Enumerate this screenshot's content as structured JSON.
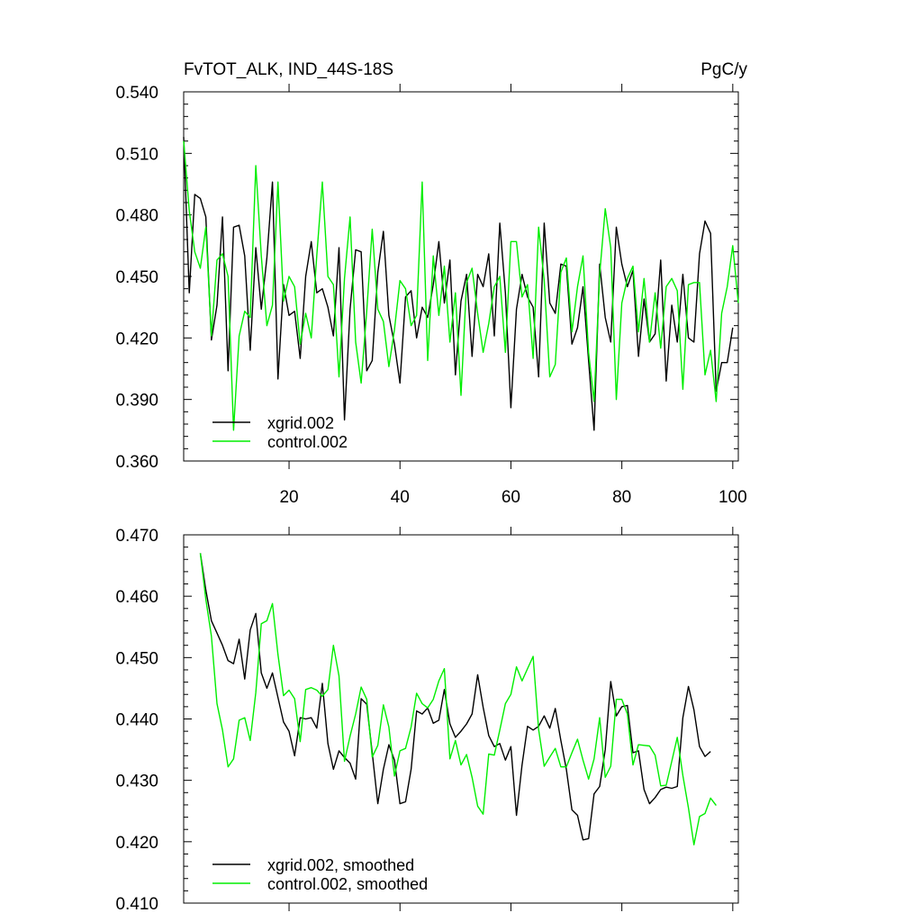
{
  "chart_data": [
    {
      "type": "line",
      "title_left": "FvTOT_ALK, IND_44S-18S",
      "title_right": "PgC/y",
      "xlim": [
        1,
        101
      ],
      "ylim": [
        0.36,
        0.54
      ],
      "yticks": [
        0.36,
        0.39,
        0.42,
        0.45,
        0.48,
        0.51,
        0.54
      ],
      "ytick_labels": [
        "0.360",
        "0.390",
        "0.420",
        "0.450",
        "0.480",
        "0.510",
        "0.540"
      ],
      "xticks": [
        20,
        40,
        60,
        80,
        100
      ],
      "xtick_labels": [
        "20",
        "40",
        "60",
        "80",
        "100"
      ],
      "legend_position": "bottom-left",
      "series": [
        {
          "name": "xgrid.002",
          "color": "#000000",
          "x_start": 1,
          "values": [
            0.518,
            0.442,
            0.49,
            0.488,
            0.479,
            0.419,
            0.436,
            0.479,
            0.404,
            0.474,
            0.475,
            0.46,
            0.414,
            0.464,
            0.434,
            0.459,
            0.496,
            0.4,
            0.446,
            0.431,
            0.433,
            0.41,
            0.45,
            0.467,
            0.442,
            0.444,
            0.435,
            0.421,
            0.464,
            0.38,
            0.434,
            0.463,
            0.462,
            0.404,
            0.409,
            0.452,
            0.472,
            0.431,
            0.417,
            0.398,
            0.44,
            0.443,
            0.42,
            0.435,
            0.43,
            0.446,
            0.467,
            0.437,
            0.458,
            0.402,
            0.438,
            0.451,
            0.411,
            0.451,
            0.445,
            0.461,
            0.421,
            0.476,
            0.442,
            0.386,
            0.434,
            0.451,
            0.44,
            0.435,
            0.401,
            0.476,
            0.437,
            0.432,
            0.456,
            0.455,
            0.417,
            0.425,
            0.445,
            0.409,
            0.375,
            0.456,
            0.43,
            0.418,
            0.474,
            0.456,
            0.445,
            0.453,
            0.411,
            0.439,
            0.418,
            0.422,
            0.458,
            0.399,
            0.436,
            0.418,
            0.451,
            0.42,
            0.418,
            0.461,
            0.477,
            0.471,
            0.394,
            0.408,
            0.408,
            0.425
          ]
        },
        {
          "name": "control.002",
          "color": "#00ee00",
          "x_start": 1,
          "values": [
            0.516,
            0.482,
            0.462,
            0.454,
            0.474,
            0.421,
            0.458,
            0.461,
            0.45,
            0.375,
            0.421,
            0.433,
            0.43,
            0.504,
            0.46,
            0.426,
            0.436,
            0.496,
            0.438,
            0.45,
            0.445,
            0.417,
            0.432,
            0.42,
            0.46,
            0.496,
            0.45,
            0.446,
            0.401,
            0.449,
            0.479,
            0.418,
            0.398,
            0.433,
            0.473,
            0.434,
            0.428,
            0.406,
            0.424,
            0.448,
            0.444,
            0.426,
            0.431,
            0.496,
            0.409,
            0.46,
            0.431,
            0.455,
            0.418,
            0.442,
            0.392,
            0.447,
            0.454,
            0.432,
            0.413,
            0.427,
            0.445,
            0.45,
            0.413,
            0.467,
            0.467,
            0.44,
            0.446,
            0.41,
            0.474,
            0.448,
            0.401,
            0.407,
            0.452,
            0.459,
            0.423,
            0.445,
            0.46,
            0.413,
            0.389,
            0.451,
            0.483,
            0.464,
            0.39,
            0.437,
            0.449,
            0.455,
            0.423,
            0.449,
            0.418,
            0.442,
            0.415,
            0.445,
            0.449,
            0.443,
            0.395,
            0.446,
            0.447,
            0.447,
            0.402,
            0.414,
            0.389,
            0.432,
            0.445,
            0.465,
            0.437
          ]
        }
      ]
    },
    {
      "type": "line",
      "xlim": [
        1,
        101
      ],
      "ylim": [
        0.41,
        0.47
      ],
      "yticks": [
        0.41,
        0.42,
        0.43,
        0.44,
        0.45,
        0.46,
        0.47
      ],
      "ytick_labels": [
        "0.410",
        "0.420",
        "0.430",
        "0.440",
        "0.450",
        "0.460",
        "0.470"
      ],
      "xticks": [
        20,
        40,
        60,
        80,
        100
      ],
      "legend_position": "bottom-left",
      "series": [
        {
          "name": "xgrid.002, smoothed",
          "color": "#000000",
          "x_start": 4,
          "values": [
            0.467,
            0.461,
            0.456,
            0.454,
            0.452,
            0.4495,
            0.449,
            0.453,
            0.4465,
            0.4545,
            0.4572,
            0.4475,
            0.445,
            0.4475,
            0.4435,
            0.4395,
            0.438,
            0.434,
            0.4402,
            0.44,
            0.4402,
            0.4385,
            0.4458,
            0.436,
            0.4318,
            0.4348,
            0.4337,
            0.4328,
            0.4302,
            0.4433,
            0.4424,
            0.4345,
            0.4262,
            0.4318,
            0.4358,
            0.4333,
            0.4262,
            0.4265,
            0.4318,
            0.4413,
            0.4408,
            0.4418,
            0.4393,
            0.4398,
            0.4448,
            0.4392,
            0.437,
            0.438,
            0.4392,
            0.4408,
            0.4472,
            0.4419,
            0.4373,
            0.4355,
            0.436,
            0.4333,
            0.4355,
            0.4243,
            0.4325,
            0.4388,
            0.4382,
            0.4388,
            0.4405,
            0.4385,
            0.4417,
            0.4365,
            0.4318,
            0.4252,
            0.4243,
            0.4203,
            0.4205,
            0.4278,
            0.429,
            0.435,
            0.4461,
            0.4405,
            0.442,
            0.4422,
            0.4345,
            0.4348,
            0.4285,
            0.4262,
            0.4272,
            0.4285,
            0.4289,
            0.4287,
            0.429,
            0.4402,
            0.4453,
            0.4415,
            0.4355,
            0.4339,
            0.4347
          ]
        },
        {
          "name": "control.002, smoothed",
          "color": "#00ee00",
          "x_start": 4,
          "values": [
            0.467,
            0.4595,
            0.4535,
            0.4425,
            0.4382,
            0.4322,
            0.4335,
            0.4398,
            0.4402,
            0.4365,
            0.4443,
            0.4555,
            0.456,
            0.4588,
            0.4505,
            0.4438,
            0.4447,
            0.4433,
            0.4363,
            0.4448,
            0.4451,
            0.4447,
            0.4437,
            0.4448,
            0.452,
            0.447,
            0.4331,
            0.4372,
            0.4408,
            0.4452,
            0.4432,
            0.4338,
            0.4357,
            0.4423,
            0.4387,
            0.4307,
            0.4348,
            0.4352,
            0.4387,
            0.4442,
            0.4425,
            0.4418,
            0.4432,
            0.4462,
            0.4482,
            0.4335,
            0.4365,
            0.4325,
            0.4342,
            0.4305,
            0.4258,
            0.4245,
            0.4343,
            0.4341,
            0.4382,
            0.4425,
            0.444,
            0.4485,
            0.4462,
            0.4482,
            0.4502,
            0.4383,
            0.4323,
            0.4338,
            0.4352,
            0.4322,
            0.4322,
            0.4345,
            0.4367,
            0.4333,
            0.4302,
            0.4335,
            0.4402,
            0.4305,
            0.4323,
            0.4432,
            0.4432,
            0.4408,
            0.4325,
            0.4358,
            0.4357,
            0.4356,
            0.4341,
            0.4291,
            0.4292,
            0.4331,
            0.437,
            0.4308,
            0.4255,
            0.4195,
            0.4241,
            0.4246,
            0.4271,
            0.4259
          ]
        }
      ]
    }
  ]
}
